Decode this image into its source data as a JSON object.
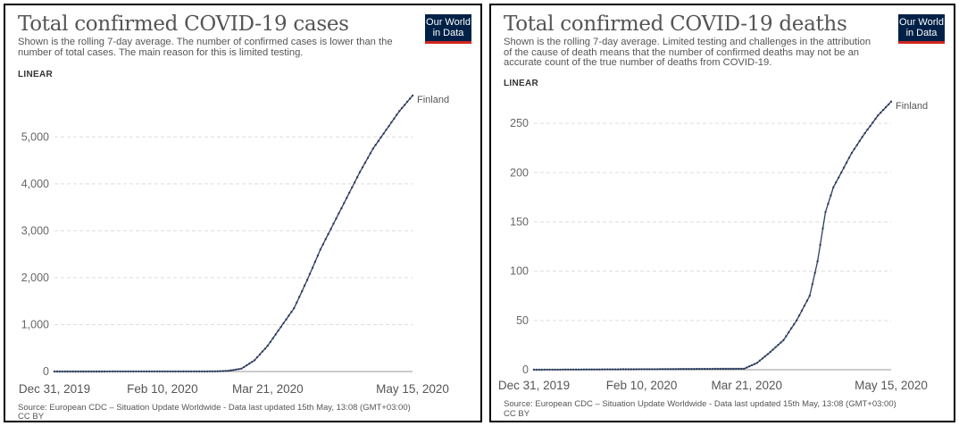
{
  "logo": {
    "line1": "Our World",
    "line2": "in Data"
  },
  "chart_data": [
    {
      "type": "line",
      "title": "Total confirmed COVID-19 cases",
      "subtitle": "Shown is the rolling 7-day average. The number of confirmed cases is lower than the number of total cases. The main reason for this is limited testing.",
      "scale_label": "LINEAR",
      "xlabel": "",
      "ylabel": "",
      "x_ticks": [
        "Dec 31, 2019",
        "Feb 10, 2020",
        "Mar 21, 2020",
        "May 15, 2020"
      ],
      "y_ticks": [
        "0",
        "1,000",
        "2,000",
        "3,000",
        "4,000",
        "5,000"
      ],
      "ylim": [
        0,
        5900
      ],
      "grid": true,
      "series": [
        {
          "name": "Finland",
          "x": [
            "2019-12-31",
            "2020-03-01",
            "2020-03-06",
            "2020-03-11",
            "2020-03-16",
            "2020-03-21",
            "2020-03-26",
            "2020-03-31",
            "2020-04-05",
            "2020-04-10",
            "2020-04-15",
            "2020-04-20",
            "2020-04-25",
            "2020-04-30",
            "2020-05-05",
            "2020-05-10",
            "2020-05-15"
          ],
          "values": [
            0,
            3,
            15,
            60,
            240,
            550,
            950,
            1350,
            1950,
            2600,
            3150,
            3700,
            4250,
            4750,
            5150,
            5550,
            5880
          ]
        }
      ],
      "source": "Source: European CDC – Situation Update Worldwide - Data last updated 15th May, 13:08 (GMT+03:00)",
      "license": "CC BY"
    },
    {
      "type": "line",
      "title": "Total confirmed COVID-19 deaths",
      "subtitle": "Shown is the rolling 7-day average. Limited testing and challenges in the attribution of the cause of death means that the number of confirmed deaths may not be an accurate count of the true number of deaths from COVID-19.",
      "scale_label": "LINEAR",
      "xlabel": "",
      "ylabel": "",
      "x_ticks": [
        "Dec 31, 2019",
        "Feb 10, 2020",
        "Mar 21, 2020",
        "May 15, 2020"
      ],
      "y_ticks": [
        "0",
        "50",
        "100",
        "150",
        "200",
        "250"
      ],
      "ylim": [
        0,
        270
      ],
      "grid": true,
      "series": [
        {
          "name": "Finland",
          "x": [
            "2019-12-31",
            "2020-03-20",
            "2020-03-25",
            "2020-03-30",
            "2020-04-04",
            "2020-04-09",
            "2020-04-14",
            "2020-04-17",
            "2020-04-20",
            "2020-04-23",
            "2020-04-26",
            "2020-04-30",
            "2020-05-05",
            "2020-05-10",
            "2020-05-15"
          ],
          "values": [
            0,
            1,
            7,
            18,
            30,
            50,
            75,
            110,
            160,
            185,
            200,
            220,
            240,
            258,
            272
          ]
        }
      ],
      "source": "Source: European CDC – Situation Update Worldwide - Data last updated 15th May, 13:08 (GMT+03:00)",
      "license": "CC BY"
    }
  ]
}
